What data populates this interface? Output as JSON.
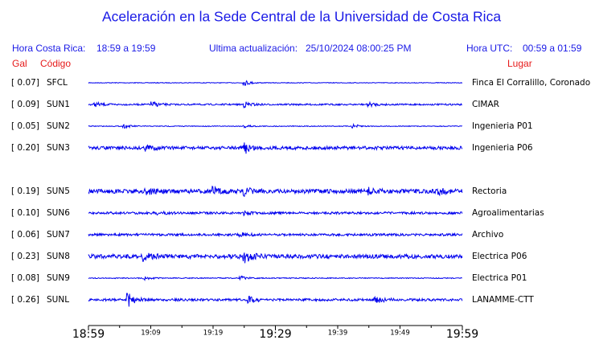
{
  "header": {
    "title": "Aceleración en la Sede Central de la Universidad de Costa Rica",
    "local_label": "Hora Costa Rica:",
    "local_range": "18:59 a 19:59",
    "update_label": "Ultima actualización:",
    "update_value": "25/10/2024 08:00:25 PM",
    "utc_label": "Hora UTC:",
    "utc_range": "00:59 a 01:59",
    "gal_header": "Gal",
    "code_header": "Código",
    "place_header": "Lugar"
  },
  "stations": [
    {
      "gal": "[  0.07]",
      "code": "SFCL",
      "place": "Finca El Corralillo, Coronado"
    },
    {
      "gal": "[  0.09]",
      "code": "SUN1",
      "place": "CIMAR"
    },
    {
      "gal": "[  0.05]",
      "code": "SUN2",
      "place": "Ingenieria P01"
    },
    {
      "gal": "[  0.20]",
      "code": "SUN3",
      "place": "Ingenieria P06"
    },
    {
      "gal": "[  0.19]",
      "code": "SUN5",
      "place": "Rectoria"
    },
    {
      "gal": "[  0.10]",
      "code": "SUN6",
      "place": "Agroalimentarias"
    },
    {
      "gal": "[  0.06]",
      "code": "SUN7",
      "place": "Archivo"
    },
    {
      "gal": "[  0.23]",
      "code": "SUN8",
      "place": "Electrica P06"
    },
    {
      "gal": "[  0.08]",
      "code": "SUN9",
      "place": "Electrica P01"
    },
    {
      "gal": "[  0.26]",
      "code": "SUNL",
      "place": "LANAMME-CTT"
    }
  ],
  "time_axis": [
    "18:59",
    "19:09",
    "19:19",
    "19:29",
    "19:39",
    "19:49",
    "19:59"
  ]
}
